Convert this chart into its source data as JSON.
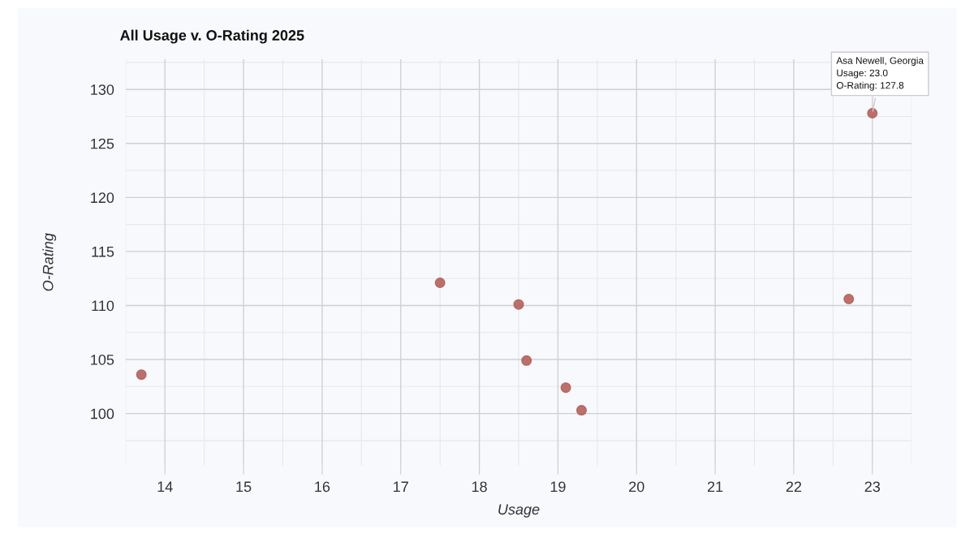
{
  "chart_data": {
    "type": "scatter",
    "title": "All Usage v. O-Rating 2025",
    "xlabel": "Usage",
    "ylabel": "O-Rating",
    "x": [
      13.7,
      17.5,
      18.5,
      18.6,
      19.1,
      19.3,
      22.7,
      23.0
    ],
    "series": [
      {
        "color": "#b5615c",
        "values": [
          103.6,
          112.1,
          110.1,
          104.9,
          102.4,
          100.3,
          110.6,
          127.8
        ]
      }
    ],
    "xlim": [
      13.5,
      23.5
    ],
    "xticks": [
      14,
      15,
      16,
      17,
      18,
      19,
      20,
      21,
      22,
      23
    ],
    "ylim": [
      95.2,
      132.8
    ],
    "yticks": [
      100,
      105,
      110,
      115,
      120,
      125,
      130
    ],
    "grid": true,
    "marker": "circle",
    "annotations": [
      {
        "text": "Asa Newell, Georgia\nUsage: 23.0\nO-Rating: 127.8",
        "x": 23.0,
        "y": 127.8
      }
    ]
  }
}
